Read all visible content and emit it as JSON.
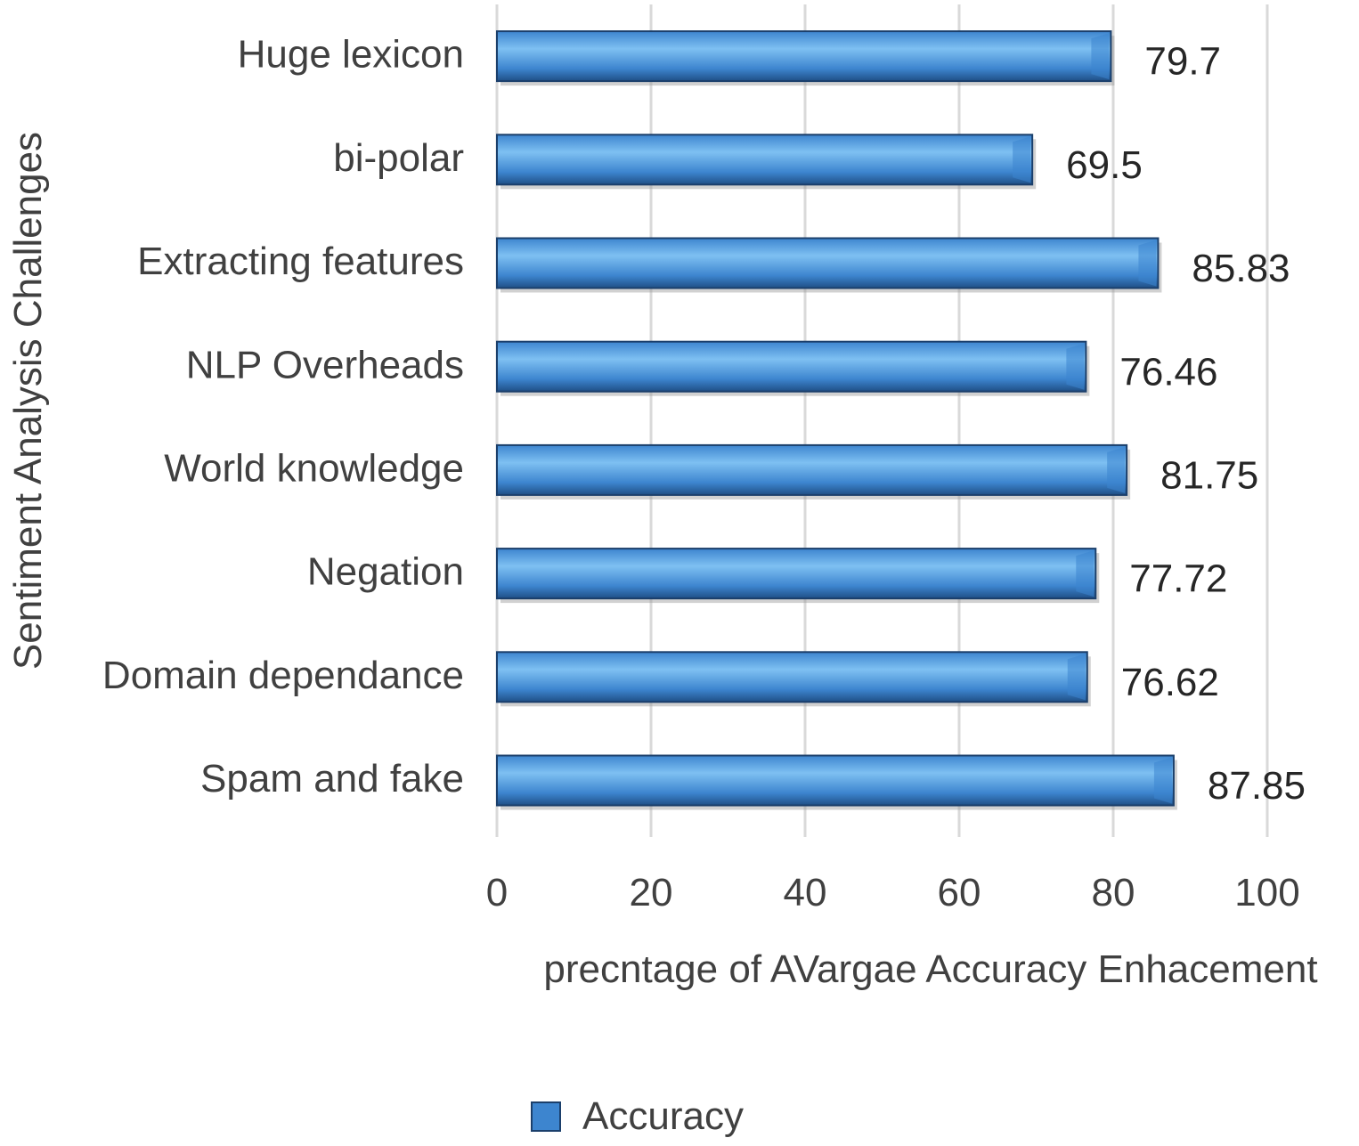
{
  "chart_data": {
    "type": "bar",
    "orientation": "horizontal",
    "categories": [
      "Huge lexicon",
      "bi-polar",
      "Extracting features",
      "NLP Overheads",
      "World knowledge",
      "Negation",
      "Domain dependance",
      "Spam and fake"
    ],
    "series": [
      {
        "name": "Accuracy",
        "values": [
          79.7,
          69.5,
          85.83,
          76.46,
          81.75,
          77.72,
          76.62,
          87.85
        ],
        "value_labels": [
          "79.7",
          "69.5",
          "85.83",
          "76.46",
          "81.75",
          "77.72",
          "76.62",
          "87.85"
        ]
      }
    ],
    "xlabel": "precntage of AVargae Accuracy Enhacement",
    "ylabel": "Sentiment Analysis Challenges",
    "xlim": [
      0,
      100
    ],
    "xticks": [
      0,
      20,
      40,
      60,
      80,
      100
    ],
    "xtick_labels": [
      "0",
      "20",
      "40",
      "60",
      "80",
      "100"
    ],
    "grid": "vertical",
    "legend": {
      "position": "bottom",
      "label": "Accuracy"
    },
    "colors": {
      "bar_light": "#7ec0f2",
      "bar_main": "#3d85cf",
      "bar_dark": "#1f4f86",
      "bar_edge": "#1b3f6b"
    }
  }
}
